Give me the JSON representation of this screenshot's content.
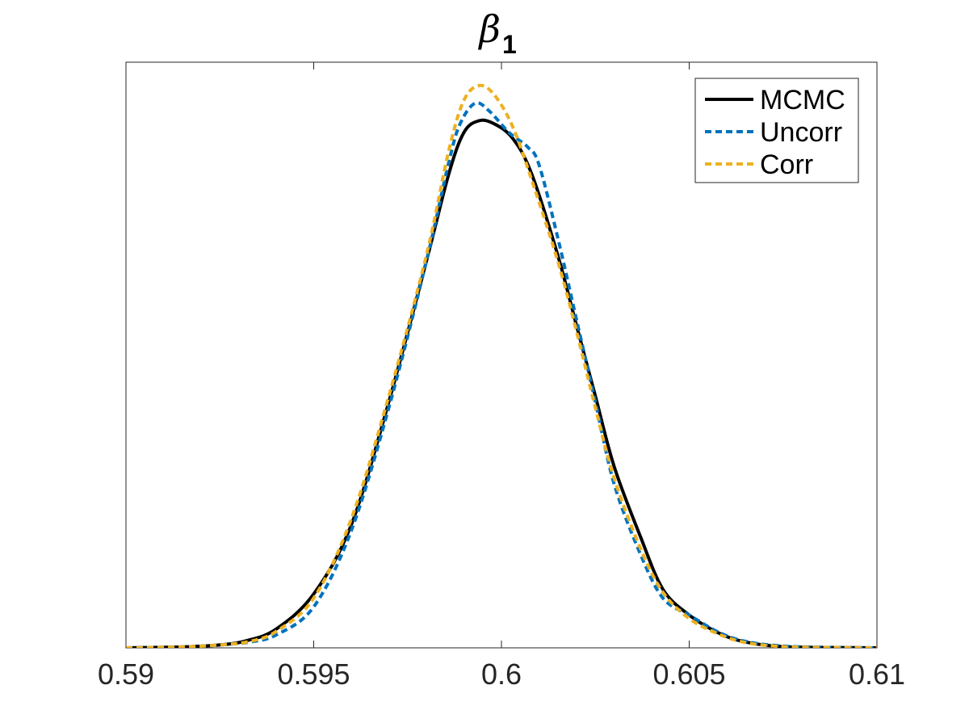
{
  "chart_data": {
    "type": "line",
    "title": {
      "symbol": "β",
      "subscript": "1"
    },
    "xlabel": "",
    "ylabel": "",
    "xlim": [
      0.59,
      0.61
    ],
    "ylim": [
      0,
      1.0
    ],
    "y_ticks_visible": false,
    "grid": false,
    "legend_position": "top-right",
    "x_ticks": [
      0.59,
      0.595,
      0.6,
      0.605,
      0.61
    ],
    "x_tick_labels": [
      "0.59",
      "0.595",
      "0.6",
      "0.605",
      "0.61"
    ],
    "series": [
      {
        "name": "MCMC",
        "color": "#000000",
        "style": "solid",
        "points": [
          [
            0.59,
            0.0
          ],
          [
            0.5915,
            0.0015
          ],
          [
            0.5925,
            0.005
          ],
          [
            0.5932,
            0.012
          ],
          [
            0.594,
            0.032
          ],
          [
            0.595,
            0.092
          ],
          [
            0.596,
            0.21
          ],
          [
            0.597,
            0.42
          ],
          [
            0.598,
            0.66
          ],
          [
            0.5986,
            0.81
          ],
          [
            0.599,
            0.88
          ],
          [
            0.5994,
            0.9
          ],
          [
            0.5998,
            0.895
          ],
          [
            0.6003,
            0.87
          ],
          [
            0.6008,
            0.81
          ],
          [
            0.6015,
            0.67
          ],
          [
            0.602,
            0.55
          ],
          [
            0.6025,
            0.43
          ],
          [
            0.603,
            0.31
          ],
          [
            0.6037,
            0.19
          ],
          [
            0.6043,
            0.1
          ],
          [
            0.605,
            0.056
          ],
          [
            0.6058,
            0.025
          ],
          [
            0.6065,
            0.01
          ],
          [
            0.6075,
            0.002
          ],
          [
            0.609,
            0.0005
          ],
          [
            0.61,
            0.0
          ]
        ]
      },
      {
        "name": "Uncorr",
        "color": "#0072BD",
        "style": "dashed",
        "points": [
          [
            0.59,
            0.0
          ],
          [
            0.5915,
            0.0015
          ],
          [
            0.5925,
            0.005
          ],
          [
            0.5933,
            0.01
          ],
          [
            0.594,
            0.022
          ],
          [
            0.595,
            0.07
          ],
          [
            0.596,
            0.2
          ],
          [
            0.597,
            0.41
          ],
          [
            0.598,
            0.66
          ],
          [
            0.5986,
            0.83
          ],
          [
            0.5989,
            0.895
          ],
          [
            0.5993,
            0.93
          ],
          [
            0.5997,
            0.915
          ],
          [
            0.6002,
            0.88
          ],
          [
            0.6007,
            0.855
          ],
          [
            0.601,
            0.825
          ],
          [
            0.6015,
            0.7
          ],
          [
            0.602,
            0.56
          ],
          [
            0.6025,
            0.42
          ],
          [
            0.603,
            0.28
          ],
          [
            0.6037,
            0.16
          ],
          [
            0.6043,
            0.085
          ],
          [
            0.605,
            0.056
          ],
          [
            0.6058,
            0.026
          ],
          [
            0.6065,
            0.011
          ],
          [
            0.6075,
            0.003
          ],
          [
            0.609,
            0.0005
          ],
          [
            0.61,
            0.0
          ]
        ]
      },
      {
        "name": "Corr",
        "color": "#EDB120",
        "style": "dashed",
        "points": [
          [
            0.59,
            0.0
          ],
          [
            0.5915,
            0.0015
          ],
          [
            0.5925,
            0.005
          ],
          [
            0.5933,
            0.011
          ],
          [
            0.594,
            0.028
          ],
          [
            0.595,
            0.085
          ],
          [
            0.596,
            0.22
          ],
          [
            0.597,
            0.43
          ],
          [
            0.598,
            0.67
          ],
          [
            0.5986,
            0.85
          ],
          [
            0.599,
            0.935
          ],
          [
            0.5994,
            0.96
          ],
          [
            0.5998,
            0.945
          ],
          [
            0.6003,
            0.89
          ],
          [
            0.6008,
            0.8
          ],
          [
            0.6015,
            0.66
          ],
          [
            0.602,
            0.54
          ],
          [
            0.6025,
            0.41
          ],
          [
            0.603,
            0.29
          ],
          [
            0.6037,
            0.17
          ],
          [
            0.6043,
            0.095
          ],
          [
            0.605,
            0.05
          ],
          [
            0.6058,
            0.023
          ],
          [
            0.6065,
            0.009
          ],
          [
            0.6075,
            0.002
          ],
          [
            0.609,
            0.0005
          ],
          [
            0.61,
            0.0
          ]
        ]
      }
    ]
  }
}
